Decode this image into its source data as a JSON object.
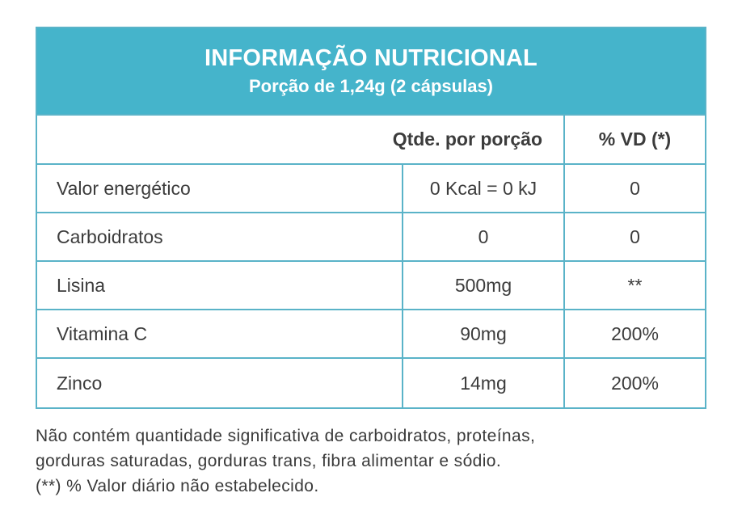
{
  "table": {
    "title": "INFORMAÇÃO NUTRICIONAL",
    "subtitle": "Porção de 1,24g (2 cápsulas)",
    "columns": {
      "qty": "Qtde. por porção",
      "vd": "% VD (*)"
    },
    "rows": [
      {
        "name": "Valor energético",
        "qty": "0 Kcal = 0 kJ",
        "vd": "0"
      },
      {
        "name": "Carboidratos",
        "qty": "0",
        "vd": "0"
      },
      {
        "name": "Lisina",
        "qty": "500mg",
        "vd": "**"
      },
      {
        "name": "Vitamina C",
        "qty": "90mg",
        "vd": "200%"
      },
      {
        "name": "Zinco",
        "qty": "14mg",
        "vd": "200%"
      }
    ]
  },
  "footnotes": {
    "line1": "Não contém quantidade significativa de carboidratos, proteínas,",
    "line2": "gorduras saturadas, gorduras trans, fibra alimentar e sódio.",
    "line3": "(**) % Valor diário não estabelecido."
  },
  "colors": {
    "header_bg": "#45b4cb",
    "border": "#5ab3c8",
    "text": "#3a3a3a"
  }
}
